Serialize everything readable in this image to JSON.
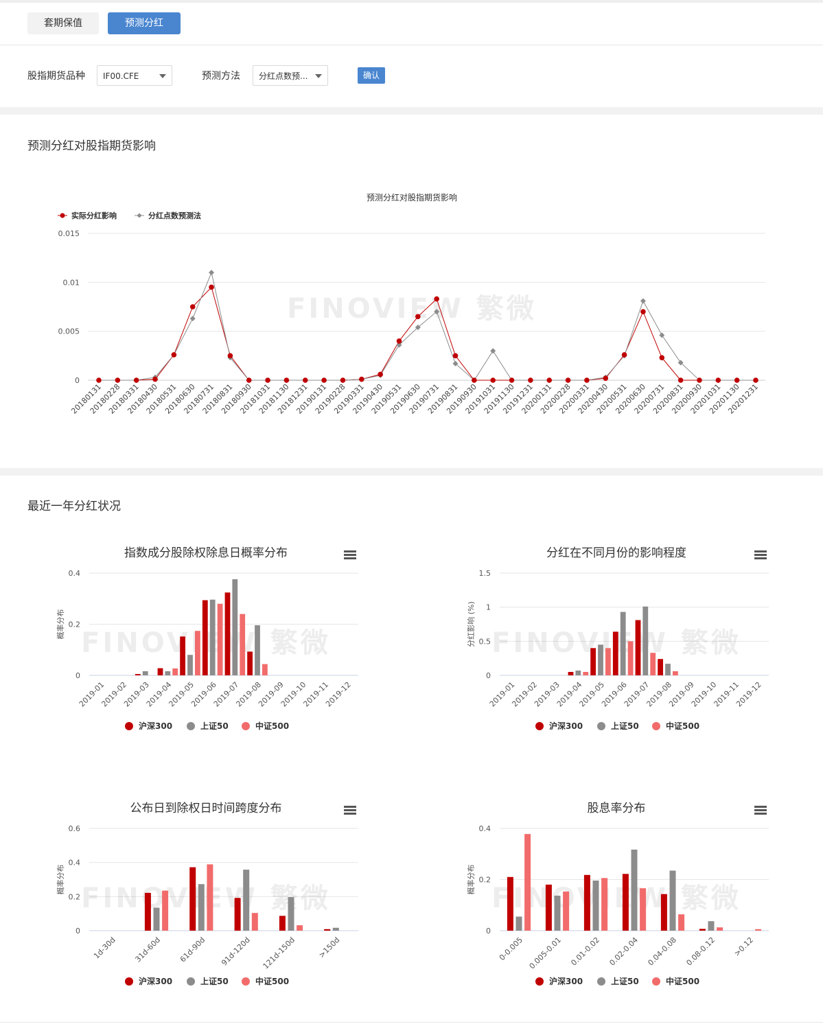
{
  "tabs": [
    {
      "label": "套期保值",
      "active": false
    },
    {
      "label": "预测分红",
      "active": true
    }
  ],
  "filters": {
    "variety_label": "股指期货品种",
    "variety_value": "IF00.CFE",
    "method_label": "预测方法",
    "method_value": "分红点数预...",
    "confirm_label": "确认"
  },
  "section1": {
    "title": "预测分红对股指期货影响"
  },
  "section2": {
    "title": "最近一年分红状况"
  },
  "watermark": "FINOVIEW 繁微",
  "colors": {
    "hs300": "#c00000",
    "sz50": "#8c8c8c",
    "zz500": "#f26b6b",
    "accent": "#4a86d0"
  },
  "chart_data": [
    {
      "type": "line",
      "title": "预测分红对股指期货影响",
      "legend_position": "top-left",
      "x": [
        "20180131",
        "20180228",
        "20180331",
        "20180430",
        "20180531",
        "20180630",
        "20180731",
        "20180831",
        "20180930",
        "20181031",
        "20181130",
        "20181231",
        "20190131",
        "20190228",
        "20190331",
        "20190430",
        "20190531",
        "20190630",
        "20190731",
        "20190831",
        "20190930",
        "20191031",
        "20191130",
        "20191231",
        "20200131",
        "20200228",
        "20200331",
        "20200430",
        "20200531",
        "20200630",
        "20200731",
        "20200831",
        "20200930",
        "20201031",
        "20201130",
        "20201231"
      ],
      "series": [
        {
          "name": "实际分红影响",
          "values": [
            0,
            0,
            0,
            0.0001,
            0.0026,
            0.0075,
            0.0095,
            0.0025,
            0,
            0,
            0,
            0,
            0,
            0,
            0.0001,
            0.0006,
            0.004,
            0.0065,
            0.0083,
            0.0025,
            0,
            0,
            0,
            0,
            0,
            0,
            0,
            0.0002,
            0.0026,
            0.007,
            0.0023,
            0,
            0,
            0,
            0,
            0
          ]
        },
        {
          "name": "分红点数预测法",
          "values": [
            0,
            0,
            0,
            0.0003,
            0.0026,
            0.0063,
            0.011,
            0.0023,
            0,
            0,
            0,
            0,
            0,
            0,
            0.0001,
            0.0005,
            0.0036,
            0.0054,
            0.007,
            0.0017,
            0,
            0.003,
            0,
            0,
            0,
            0,
            0,
            0.0003,
            0.0025,
            0.0081,
            0.0046,
            0.0018,
            0,
            0,
            0,
            0
          ]
        }
      ],
      "yticks": [
        "0",
        "0.005",
        "0.01",
        "0.015"
      ],
      "ylim": [
        0,
        0.015
      ],
      "grid": true
    },
    {
      "type": "bar",
      "title": "指数成分股除权除息日概率分布",
      "ylabel": "概率分布",
      "categories": [
        "2019-01",
        "2019-02",
        "2019-03",
        "2019-04",
        "2019-05",
        "2019-06",
        "2019-07",
        "2019-08",
        "2019-09",
        "2019-10",
        "2019-11",
        "2019-12"
      ],
      "series": [
        {
          "name": "沪深300",
          "values": [
            0,
            0,
            0.005,
            0.028,
            0.152,
            0.294,
            0.324,
            0.093,
            0,
            0,
            0,
            0
          ]
        },
        {
          "name": "上证50",
          "values": [
            0,
            0,
            0.016,
            0.016,
            0.08,
            0.296,
            0.376,
            0.196,
            0,
            0,
            0,
            0
          ]
        },
        {
          "name": "中证500",
          "values": [
            0,
            0,
            0,
            0.027,
            0.174,
            0.28,
            0.24,
            0.044,
            0,
            0,
            0,
            0
          ]
        }
      ],
      "yticks": [
        "0",
        "0.2",
        "0.4"
      ],
      "ylim": [
        0,
        0.4
      ],
      "legend_position": "bottom"
    },
    {
      "type": "bar",
      "title": "分红在不同月份的影响程度",
      "ylabel": "分红影响 (%)",
      "categories": [
        "2019-01",
        "2019-02",
        "2019-03",
        "2019-04",
        "2019-05",
        "2019-06",
        "2019-07",
        "2019-08",
        "2019-09",
        "2019-10",
        "2019-11",
        "2019-12"
      ],
      "series": [
        {
          "name": "沪深300",
          "values": [
            0,
            0,
            0,
            0.05,
            0.4,
            0.64,
            0.81,
            0.24,
            0,
            0,
            0,
            0
          ]
        },
        {
          "name": "上证50",
          "values": [
            0,
            0,
            0,
            0.07,
            0.45,
            0.93,
            1.01,
            0.17,
            0,
            0,
            0,
            0
          ]
        },
        {
          "name": "中证500",
          "values": [
            0,
            0,
            0,
            0.05,
            0.4,
            0.5,
            0.33,
            0.06,
            0,
            0,
            0,
            0
          ]
        }
      ],
      "yticks": [
        "0",
        "0.5",
        "1",
        "1.5"
      ],
      "ylim": [
        0,
        1.5
      ],
      "legend_position": "bottom"
    },
    {
      "type": "bar",
      "title": "公布日到除权日时间跨度分布",
      "ylabel": "概率分布",
      "categories": [
        "1d-30d",
        "31d-60d",
        "61d-90d",
        "91d-120d",
        "121d-150d",
        ">150d"
      ],
      "series": [
        {
          "name": "沪深300",
          "values": [
            0,
            0.222,
            0.372,
            0.192,
            0.087,
            0.009
          ]
        },
        {
          "name": "上证50",
          "values": [
            0,
            0.135,
            0.273,
            0.358,
            0.197,
            0.017
          ]
        },
        {
          "name": "中证500",
          "values": [
            0,
            0.235,
            0.389,
            0.104,
            0.032,
            0
          ]
        }
      ],
      "yticks": [
        "0",
        "0.2",
        "0.4",
        "0.6"
      ],
      "ylim": [
        0,
        0.6
      ],
      "legend_position": "bottom"
    },
    {
      "type": "bar",
      "title": "股息率分布",
      "ylabel": "概率分布",
      "categories": [
        "0-0.005",
        "0.005-0.01",
        "0.01-0.02",
        "0.02-0.04",
        "0.04-0.08",
        "0.08-0.12",
        ">0.12"
      ],
      "series": [
        {
          "name": "沪深300",
          "values": [
            0.21,
            0.18,
            0.218,
            0.222,
            0.143,
            0.007,
            0
          ]
        },
        {
          "name": "上证50",
          "values": [
            0.055,
            0.137,
            0.196,
            0.317,
            0.235,
            0.037,
            0
          ]
        },
        {
          "name": "中证500",
          "values": [
            0.378,
            0.153,
            0.206,
            0.166,
            0.064,
            0.013,
            0.006
          ]
        }
      ],
      "yticks": [
        "0",
        "0.2",
        "0.4"
      ],
      "ylim": [
        0,
        0.4
      ],
      "legend_position": "bottom"
    }
  ]
}
